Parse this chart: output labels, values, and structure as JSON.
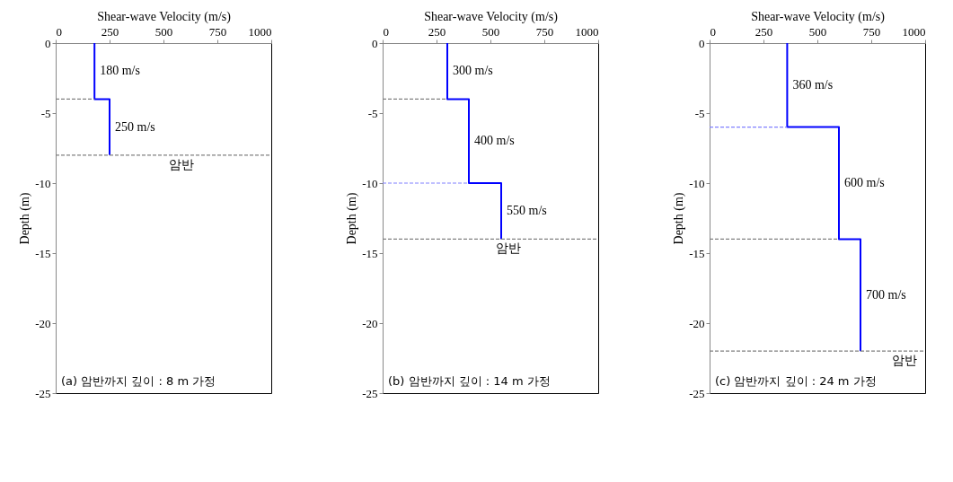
{
  "chart_data": [
    {
      "type": "line",
      "xlabel": "Shear-wave Velocity (m/s)",
      "ylabel": "Depth (m)",
      "xlim": [
        0,
        1000
      ],
      "xticks": [
        0,
        250,
        500,
        750,
        1000
      ],
      "ylim": [
        -25,
        0
      ],
      "yticks": [
        0,
        -5,
        -10,
        -15,
        -20,
        -25
      ],
      "legend": false,
      "grid": false,
      "series": [
        {
          "color": "#0000ff",
          "line_style": "solid",
          "x": [
            180,
            180,
            250,
            250
          ],
          "values": [
            0,
            -4,
            -4,
            -8
          ]
        },
        {
          "color": "#808080",
          "line_style": "dashed",
          "x": [
            0,
            180
          ],
          "values": [
            -4,
            -4
          ]
        },
        {
          "color": "#808080",
          "line_style": "dashed",
          "x": [
            0,
            1000
          ],
          "values": [
            -8,
            -8
          ]
        }
      ],
      "annotations": [
        {
          "text": "180 m/s",
          "x": 180,
          "y": -2
        },
        {
          "text": "250 m/s",
          "x": 250,
          "y": -6
        },
        {
          "text": "암반",
          "x": 500,
          "y": -8
        },
        "(a)  암반까지 깊이 : 8 m 가정"
      ]
    },
    {
      "type": "line",
      "xlabel": "Shear-wave Velocity (m/s)",
      "ylabel": "Depth (m)",
      "xlim": [
        0,
        1000
      ],
      "xticks": [
        0,
        250,
        500,
        750,
        1000
      ],
      "ylim": [
        -25,
        0
      ],
      "yticks": [
        0,
        -5,
        -10,
        -15,
        -20,
        -25
      ],
      "legend": false,
      "grid": false,
      "series": [
        {
          "color": "#0000ff",
          "line_style": "solid",
          "x": [
            300,
            300,
            400,
            400,
            550,
            550
          ],
          "values": [
            0,
            -4,
            -4,
            -10,
            -10,
            -14
          ]
        },
        {
          "color": "#808080",
          "line_style": "dashed",
          "x": [
            0,
            300
          ],
          "values": [
            -4,
            -4
          ]
        },
        {
          "color": "#8080ff",
          "line_style": "dashed",
          "x": [
            0,
            400
          ],
          "values": [
            -10,
            -10
          ]
        },
        {
          "color": "#808080",
          "line_style": "dashed",
          "x": [
            0,
            1000
          ],
          "values": [
            -14,
            -14
          ]
        }
      ],
      "annotations": [
        {
          "text": "300 m/s",
          "x": 300,
          "y": -2
        },
        {
          "text": "400 m/s",
          "x": 400,
          "y": -7
        },
        {
          "text": "550 m/s",
          "x": 550,
          "y": -12
        },
        {
          "text": "암반",
          "x": 500,
          "y": -14
        },
        "(b)  암반까지 깊이 : 14 m 가정"
      ]
    },
    {
      "type": "line",
      "xlabel": "Shear-wave Velocity (m/s)",
      "ylabel": "Depth (m)",
      "xlim": [
        0,
        1000
      ],
      "xticks": [
        0,
        250,
        500,
        750,
        1000
      ],
      "ylim": [
        -25,
        0
      ],
      "yticks": [
        0,
        -5,
        -10,
        -15,
        -20,
        -25
      ],
      "legend": false,
      "grid": false,
      "series": [
        {
          "color": "#0000ff",
          "line_style": "solid",
          "x": [
            360,
            360,
            600,
            600,
            700,
            700
          ],
          "values": [
            0,
            -6,
            -6,
            -14,
            -14,
            -22
          ]
        },
        {
          "color": "#8080ff",
          "line_style": "dashed",
          "x": [
            0,
            360
          ],
          "values": [
            -6,
            -6
          ]
        },
        {
          "color": "#808080",
          "line_style": "dashed",
          "x": [
            0,
            600
          ],
          "values": [
            -14,
            -14
          ]
        },
        {
          "color": "#808080",
          "line_style": "dashed",
          "x": [
            0,
            1000
          ],
          "values": [
            -22,
            -22
          ]
        }
      ],
      "annotations": [
        {
          "text": "360 m/s",
          "x": 360,
          "y": -3
        },
        {
          "text": "600 m/s",
          "x": 600,
          "y": -10
        },
        {
          "text": "700 m/s",
          "x": 700,
          "y": -18
        },
        {
          "text": "암반",
          "x": 820,
          "y": -22
        },
        "(c)  암반까지 깊이 : 24 m 가정"
      ]
    }
  ]
}
